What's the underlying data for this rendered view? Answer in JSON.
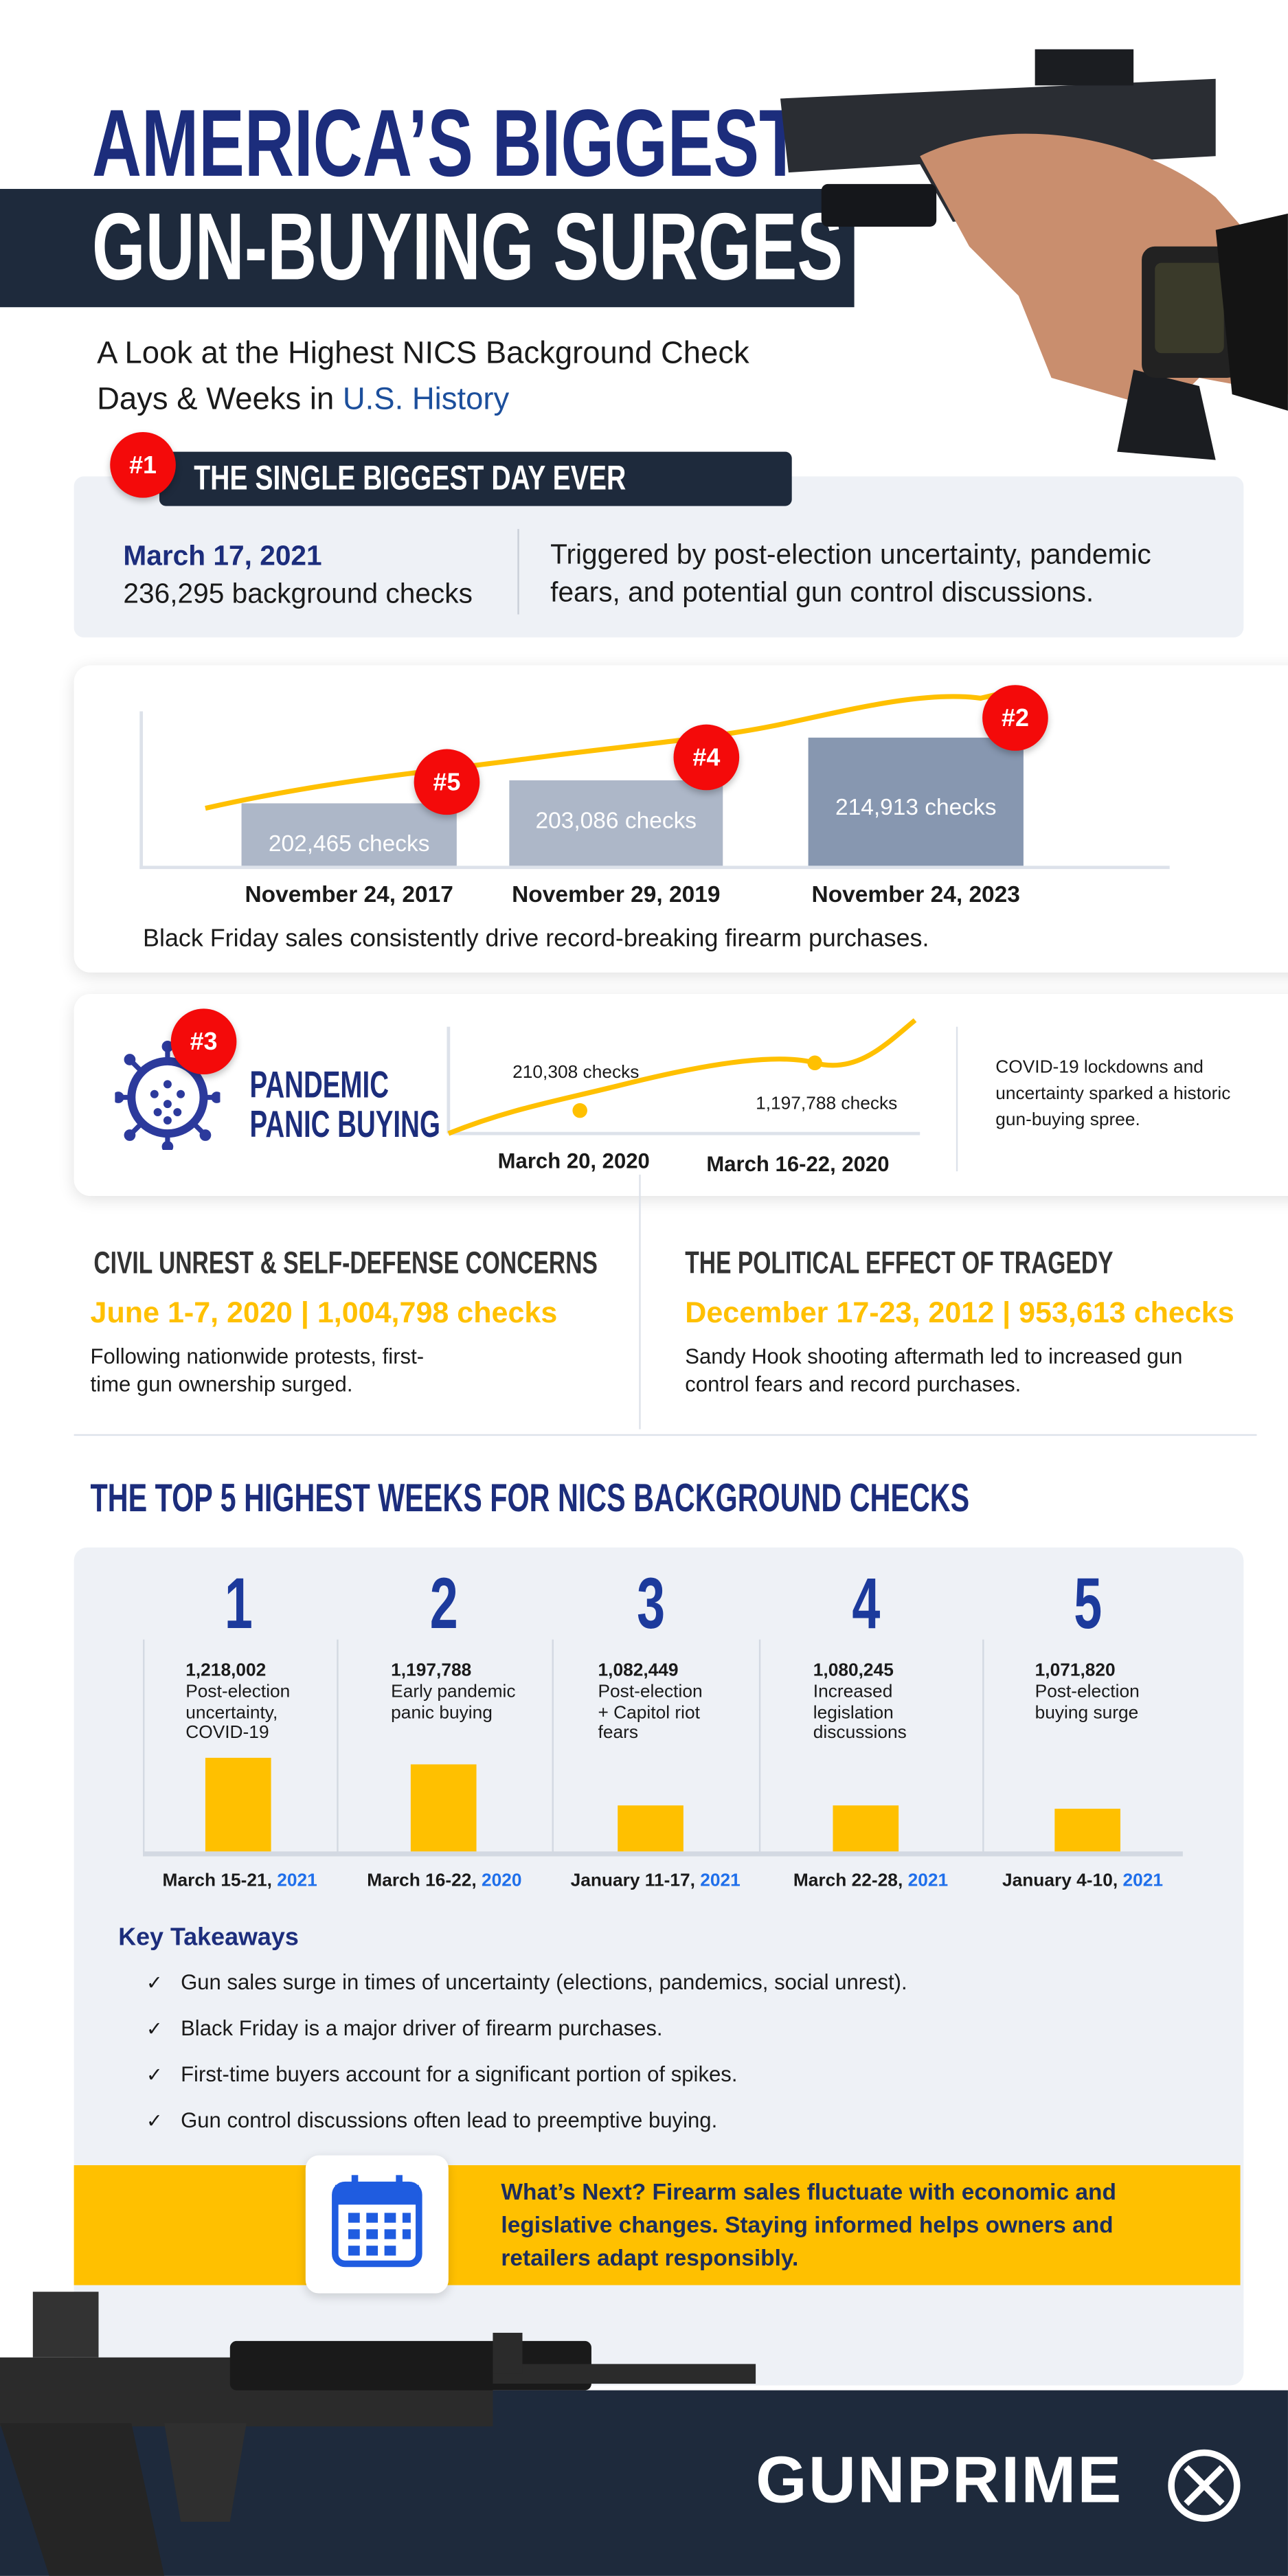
{
  "header": {
    "title_line1": "AMERICA’S BIGGEST",
    "title_line2": "GUN-BUYING SURGES",
    "subtitle_line1": "A Look at the Highest NICS Background Check",
    "subtitle_line2_prefix": "Days & Weeks in ",
    "subtitle_line2_highlight": "U.S. History"
  },
  "biggest_day": {
    "badge": "#1",
    "heading": "THE SINGLE BIGGEST DAY EVER",
    "date": "March 17, 2021",
    "checks": "236,295 background checks",
    "desc_line1": "Triggered by post-election uncertainty, pandemic",
    "desc_line2": "fears, and potential gun control discussions."
  },
  "black_friday": {
    "caption": "Black Friday sales consistently drive record-breaking firearm purchases.",
    "bars": [
      {
        "badge": "#5",
        "label": "202,465  checks",
        "date": "November 24, 2017",
        "value": 202465
      },
      {
        "badge": "#4",
        "label": "203,086 checks",
        "date": "November 29, 2019",
        "value": 203086
      },
      {
        "badge": "#2",
        "label": "214,913 checks",
        "date": "November 24, 2023",
        "value": 214913
      }
    ]
  },
  "pandemic": {
    "badge": "#3",
    "title_line1": "PANDEMIC",
    "title_line2": "PANIC BUYING",
    "point1_label": "210,308 checks",
    "point1_date": "March 20, 2020",
    "point2_label": "1,197,788 checks",
    "point2_date": "March 16-22, 2020",
    "desc_line1": "COVID-19 lockdowns and",
    "desc_line2": "uncertainty sparked a historic",
    "desc_line3": "gun-buying spree."
  },
  "civil_unrest": {
    "heading": "CIVIL UNREST & SELF-DEFENSE CONCERNS",
    "stat": "June 1-7, 2020 | 1,004,798 checks",
    "desc_line1": "Following nationwide protests, first-",
    "desc_line2": "time gun ownership surged."
  },
  "tragedy": {
    "heading": "THE POLITICAL EFFECT OF TRAGEDY",
    "stat": "December 17-23, 2012 | 953,613 checks",
    "desc_line1": "Sandy Hook shooting aftermath led to increased gun",
    "desc_line2": "control fears and record purchases."
  },
  "top5": {
    "heading": "THE TOP 5 HIGHEST WEEKS FOR NICS BACKGROUND CHECKS"
  },
  "chart_data": {
    "type": "bar",
    "categories": [
      "March 15-21, 2021",
      "March 16-22, 2020",
      "January 11-17, 2021",
      "March 22-28, 2021",
      "January 4-10, 2021"
    ],
    "values": [
      1218002,
      1197788,
      1082449,
      1080245,
      1071820
    ],
    "ranks": [
      "1",
      "2",
      "3",
      "4",
      "5"
    ],
    "value_labels": [
      "1,218,002",
      "1,197,788",
      "1,082,449",
      "1,080,245",
      "1,071,820"
    ],
    "descriptions": [
      [
        "Post-election",
        "uncertainty,",
        "COVID-19"
      ],
      [
        "Early pandemic",
        "panic buying"
      ],
      [
        "Post-election",
        "+ Capitol riot",
        "fears"
      ],
      [
        "Increased",
        "legislation",
        "discussions"
      ],
      [
        "Post-election",
        "buying surge"
      ]
    ],
    "date_prefixes": [
      "March 15-21, ",
      "March 16-22, ",
      "January 11-17, ",
      "March 22-28, ",
      "January 4-10, "
    ],
    "date_years": [
      "2021",
      "2020",
      "2021",
      "2021",
      "2021"
    ],
    "bar_color": "#ffc000"
  },
  "takeaways": {
    "heading": "Key Takeaways",
    "items": [
      "Gun sales surge in times of uncertainty (elections, pandemics, social unrest).",
      "Black Friday is a major driver of firearm purchases.",
      "First-time buyers account for a significant portion of spikes.",
      "Gun control discussions often lead to preemptive buying."
    ]
  },
  "whats_next": {
    "line1": "What’s Next? Firearm sales fluctuate with economic and",
    "line2": "legislative changes. Staying informed helps owners and",
    "line3": "retailers adapt responsibly."
  },
  "footer": {
    "logo": "GUNPRIME"
  },
  "colors": {
    "navy": "#1c2d7c",
    "dark_band": "#1e2a3c",
    "accent_yellow": "#ffc000",
    "badge_red": "#f40a0a",
    "panel_gray": "#eef1f6",
    "link_blue": "#1f6feb"
  }
}
